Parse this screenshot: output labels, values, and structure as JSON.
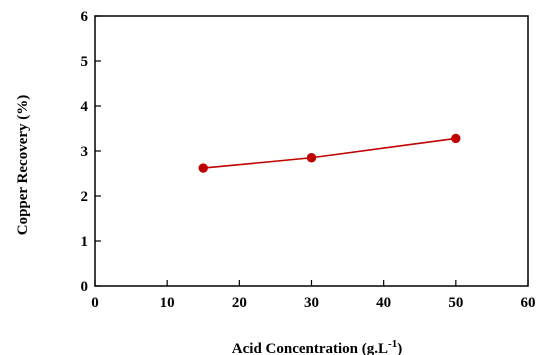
{
  "chart_data": {
    "type": "line",
    "title": "",
    "xlabel": "Acid Concentration  (g.L",
    "xlabel_sup": "-1",
    "xlabel_end": ")",
    "ylabel": "Copper Recovery (%)",
    "xlim": [
      0,
      60
    ],
    "ylim": [
      0,
      6
    ],
    "xticks": [
      0,
      10,
      20,
      30,
      40,
      50,
      60
    ],
    "yticks": [
      0,
      1,
      2,
      3,
      4,
      5,
      6
    ],
    "grid": false,
    "series": [
      {
        "x": [
          15,
          30,
          50
        ],
        "y": [
          2.62,
          2.85,
          3.28
        ],
        "line_color": "#c00000",
        "marker_color": "#c00000"
      }
    ]
  }
}
